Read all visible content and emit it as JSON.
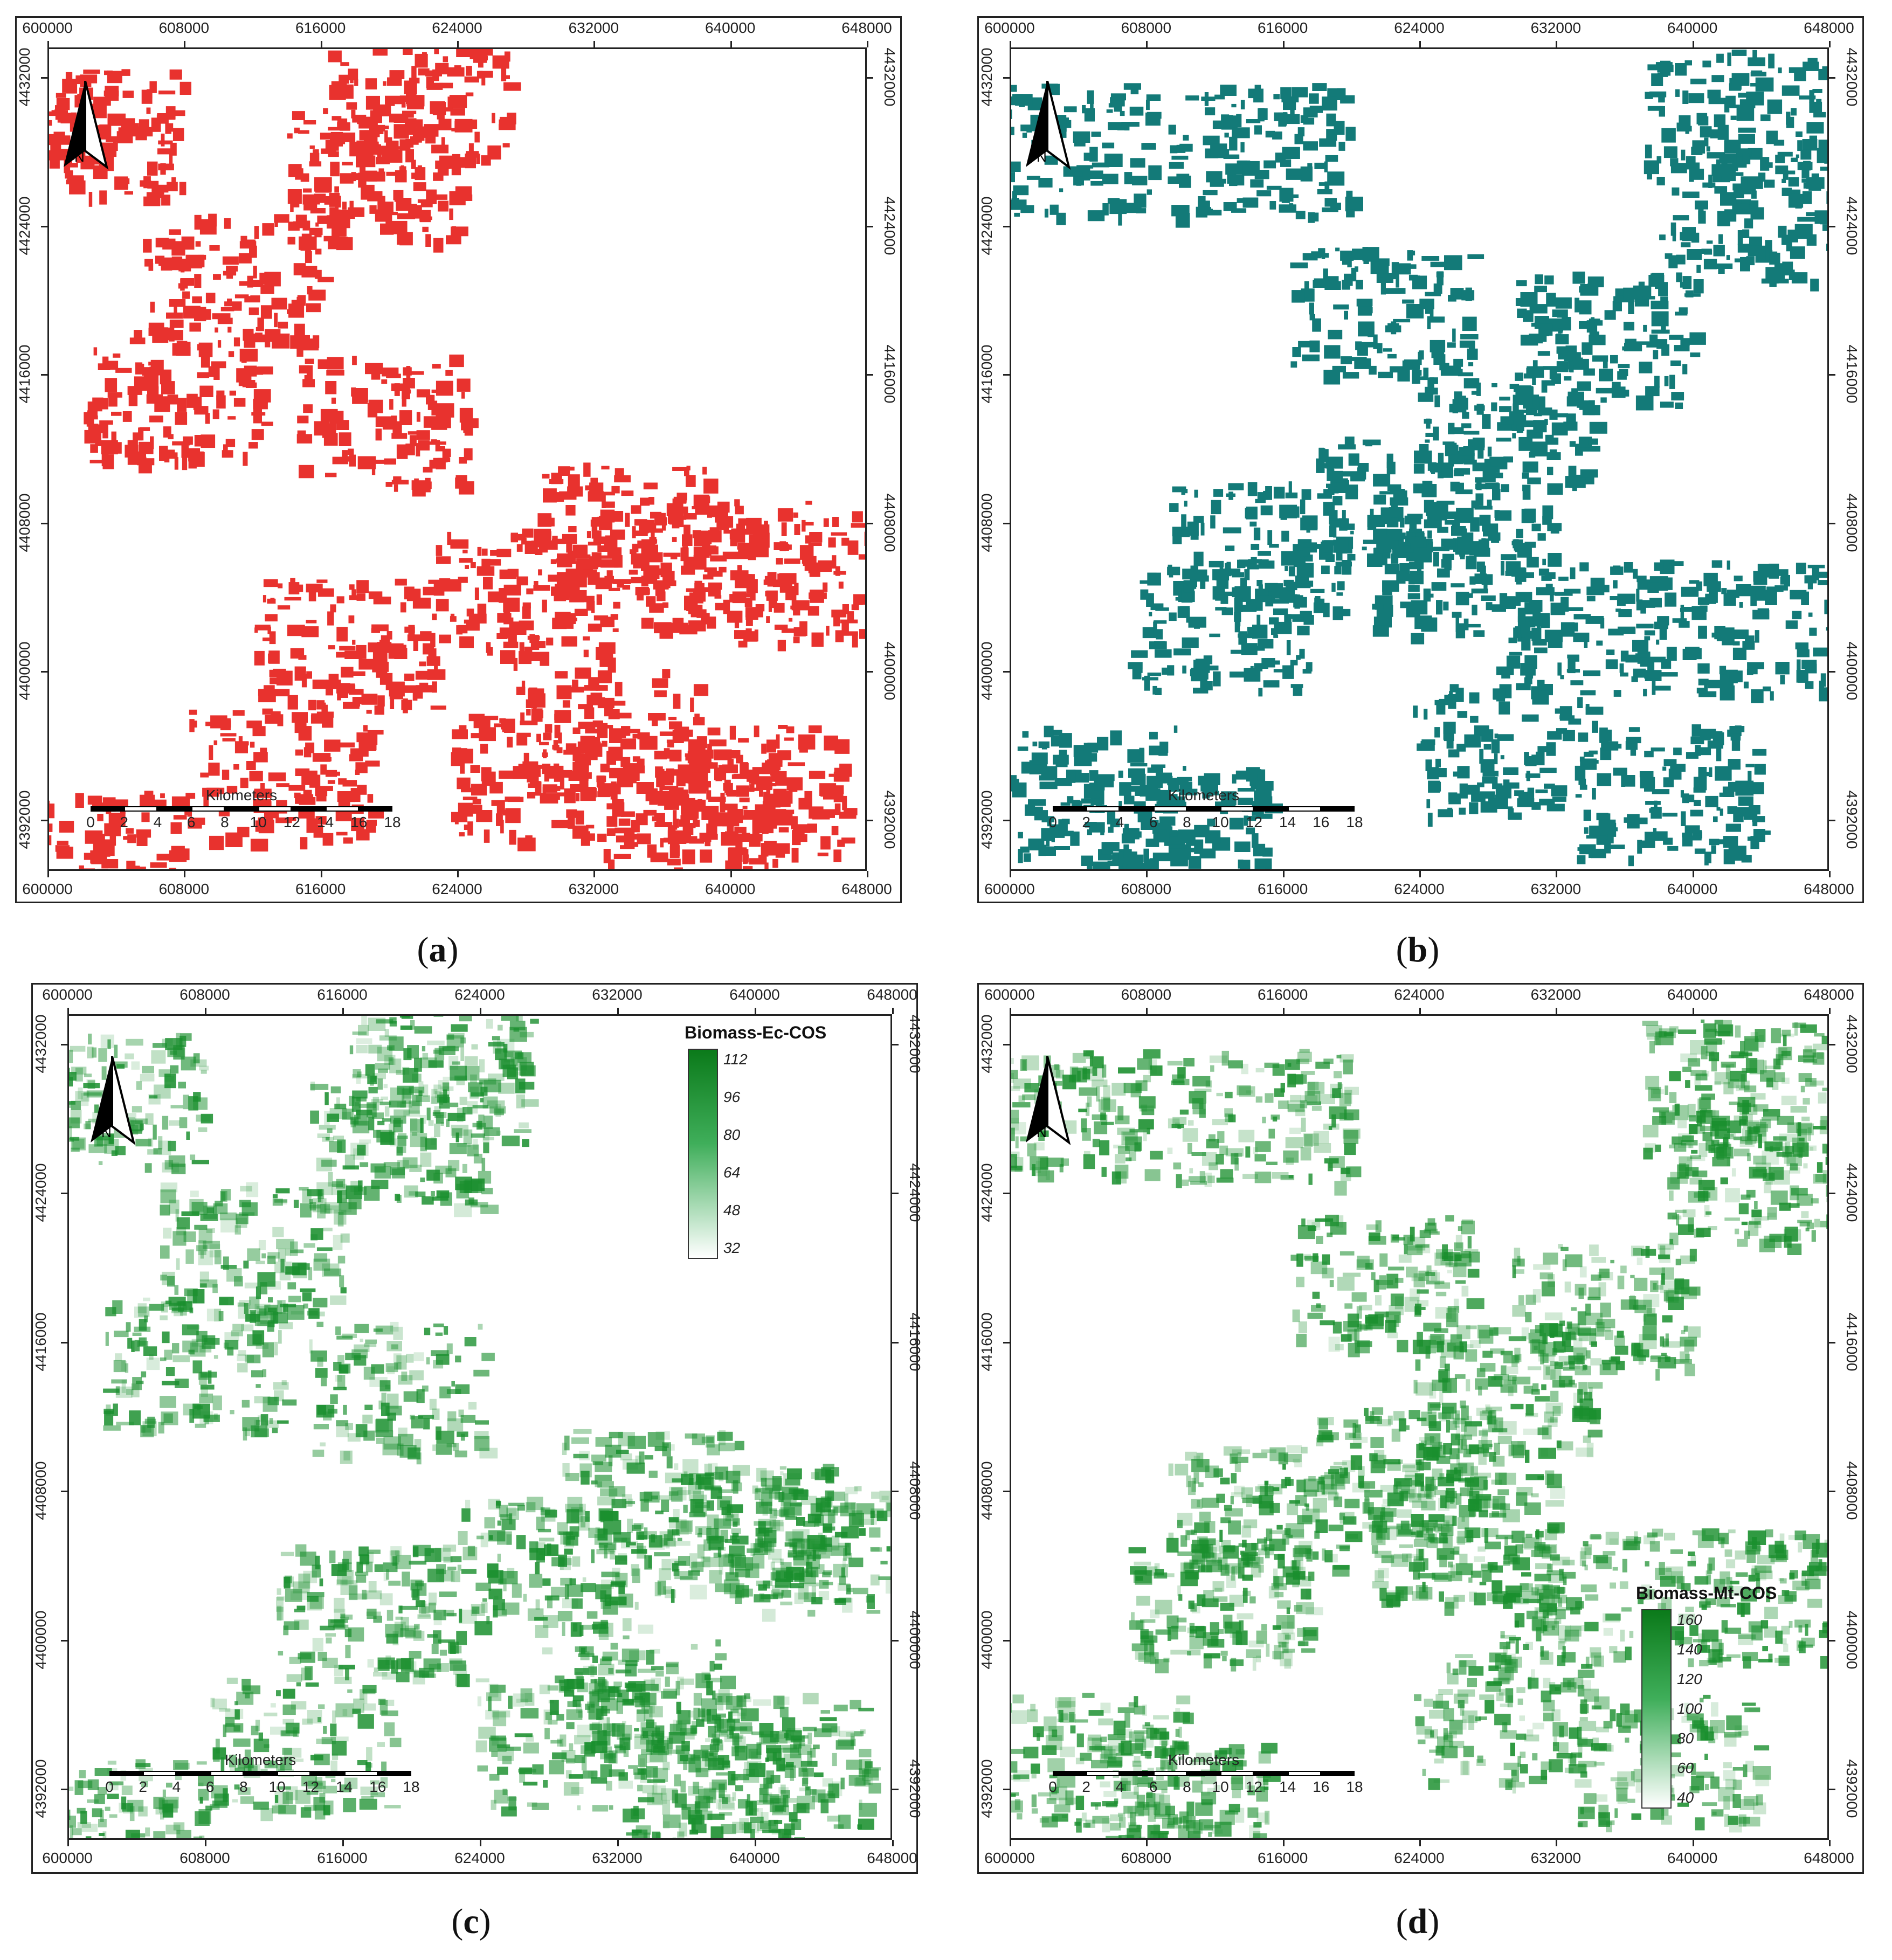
{
  "panels": [
    {
      "id": "a",
      "caption": "a",
      "fill_type": "solid",
      "fill_color": "#e8322e",
      "x_ticks": [
        "600000",
        "608000",
        "616000",
        "624000",
        "632000",
        "640000",
        "648000"
      ],
      "y_ticks": [
        "4432000",
        "4424000",
        "4416000",
        "4408000",
        "4400000",
        "4392000"
      ],
      "scalebar": {
        "title": "Kilometers",
        "labels": [
          "0",
          "2",
          "4",
          "6",
          "8",
          "10",
          "12",
          "14",
          "16",
          "18"
        ]
      },
      "legend": null
    },
    {
      "id": "b",
      "caption": "b",
      "fill_type": "solid",
      "fill_color": "#137a78",
      "x_ticks": [
        "600000",
        "608000",
        "616000",
        "624000",
        "632000",
        "640000",
        "648000"
      ],
      "y_ticks": [
        "4432000",
        "4424000",
        "4416000",
        "4408000",
        "4400000",
        "4392000"
      ],
      "scalebar": {
        "title": "Kilometers",
        "labels": [
          "0",
          "2",
          "4",
          "6",
          "8",
          "10",
          "12",
          "14",
          "16",
          "18"
        ]
      },
      "legend": null
    },
    {
      "id": "c",
      "caption": "c",
      "fill_type": "gradient",
      "fill_color": "#1a8f2e",
      "x_ticks": [
        "600000",
        "608000",
        "616000",
        "624000",
        "632000",
        "640000",
        "648000"
      ],
      "y_ticks": [
        "4432000",
        "4424000",
        "4416000",
        "4408000",
        "4400000",
        "4392000"
      ],
      "scalebar": {
        "title": "Kilometers",
        "labels": [
          "0",
          "2",
          "4",
          "6",
          "8",
          "10",
          "12",
          "14",
          "16",
          "18"
        ]
      },
      "legend": {
        "title": "Biomass-Ec-COS",
        "labels": [
          "112",
          "96",
          "80",
          "64",
          "48",
          "32"
        ],
        "color_high": "#0b7a1a",
        "color_low": "#ffffff"
      }
    },
    {
      "id": "d",
      "caption": "d",
      "fill_type": "gradient",
      "fill_color": "#1a8f2e",
      "x_ticks": [
        "600000",
        "608000",
        "616000",
        "624000",
        "632000",
        "640000",
        "648000"
      ],
      "y_ticks": [
        "4432000",
        "4424000",
        "4416000",
        "4408000",
        "4400000",
        "4392000"
      ],
      "scalebar": {
        "title": "Kilometers",
        "labels": [
          "0",
          "2",
          "4",
          "6",
          "8",
          "10",
          "12",
          "14",
          "16",
          "18"
        ]
      },
      "legend": {
        "title": "Biomass-Mt-COS",
        "labels": [
          "160",
          "140",
          "120",
          "100",
          "80",
          "60",
          "40"
        ],
        "color_high": "#0b7a1a",
        "color_low": "#ffffff"
      }
    }
  ]
}
